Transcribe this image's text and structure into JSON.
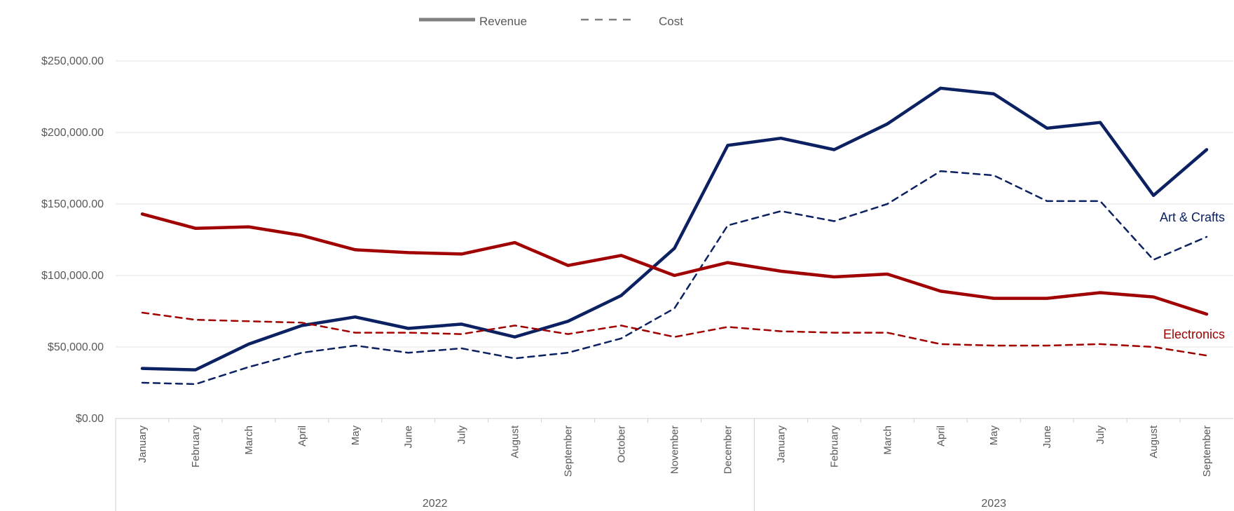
{
  "chart_data": {
    "type": "line",
    "title": "",
    "xlabel": "",
    "ylabel": "",
    "ylim": [
      0,
      250000
    ],
    "y_ticks": [
      0,
      50000,
      100000,
      150000,
      200000,
      250000
    ],
    "y_tick_labels": [
      "$0.00",
      "$50,000.00",
      "$100,000.00",
      "$150,000.00",
      "$200,000.00",
      "$250,000.00"
    ],
    "grid": true,
    "legend_position": "top-center",
    "categories": [
      "January",
      "February",
      "March",
      "April",
      "May",
      "June",
      "July",
      "August",
      "September",
      "October",
      "November",
      "December",
      "January",
      "February",
      "March",
      "April",
      "May",
      "June",
      "July",
      "August",
      "September"
    ],
    "year_groups": [
      {
        "label": "2022",
        "start": 0,
        "end": 11
      },
      {
        "label": "2023",
        "start": 12,
        "end": 20
      }
    ],
    "legend": [
      {
        "label": "Revenue",
        "style": "solid"
      },
      {
        "label": "Cost",
        "style": "dashed"
      }
    ],
    "series": [
      {
        "group": "Art & Crafts",
        "measure": "Revenue",
        "color": "#0b2161",
        "style": "solid",
        "values": [
          35000,
          34000,
          52000,
          65000,
          71000,
          63000,
          66000,
          57000,
          68000,
          86000,
          119000,
          191000,
          196000,
          188000,
          206000,
          231000,
          227000,
          203000,
          207000,
          156000,
          188000
        ]
      },
      {
        "group": "Art & Crafts",
        "measure": "Cost",
        "color": "#0b2161",
        "style": "dashed",
        "values": [
          25000,
          24000,
          36000,
          46000,
          51000,
          46000,
          49000,
          42000,
          46000,
          56000,
          77000,
          135000,
          145000,
          138000,
          150000,
          173000,
          170000,
          152000,
          152000,
          111000,
          127000
        ]
      },
      {
        "group": "Electronics",
        "measure": "Revenue",
        "color": "#a00000",
        "style": "solid",
        "values": [
          143000,
          133000,
          134000,
          128000,
          118000,
          116000,
          115000,
          123000,
          107000,
          114000,
          100000,
          109000,
          103000,
          99000,
          101000,
          89000,
          84000,
          84000,
          88000,
          85000,
          73000
        ]
      },
      {
        "group": "Electronics",
        "measure": "Cost",
        "color": "#a00000",
        "style": "dashed",
        "values": [
          74000,
          69000,
          68000,
          67000,
          60000,
          60000,
          59000,
          65000,
          59000,
          65000,
          57000,
          64000,
          61000,
          60000,
          60000,
          52000,
          51000,
          51000,
          52000,
          50000,
          44000
        ]
      }
    ],
    "series_labels": [
      {
        "text": "Art & Crafts",
        "color": "#0b2161"
      },
      {
        "text": "Electronics",
        "color": "#a00000"
      }
    ]
  }
}
